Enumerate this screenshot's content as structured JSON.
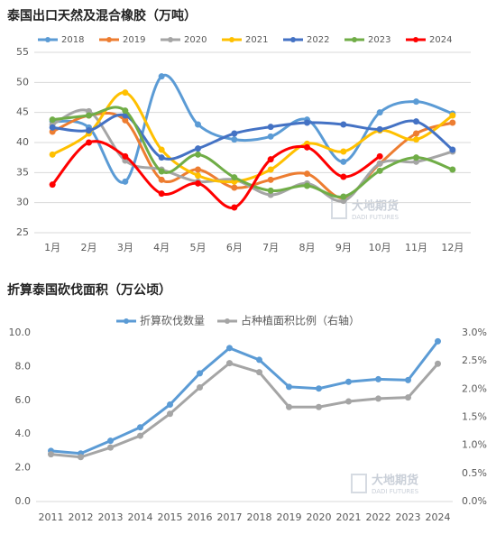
{
  "chart_data": [
    {
      "type": "line",
      "title": "泰国出口天然及混合橡胶（万吨）",
      "categories": [
        "1月",
        "2月",
        "3月",
        "4月",
        "5月",
        "6月",
        "7月",
        "8月",
        "9月",
        "10月",
        "11月",
        "12月"
      ],
      "ylim": [
        25,
        55
      ],
      "yticks": [
        25,
        30,
        35,
        40,
        45,
        50,
        55
      ],
      "grid": true,
      "smooth": true,
      "legend": "top",
      "watermark": [
        "大地期货",
        "DADI FUTURES"
      ],
      "series": [
        {
          "name": "2018",
          "color": "#5b9bd5",
          "values": [
            43.5,
            42.5,
            33.5,
            51,
            43,
            40.5,
            41,
            43.8,
            36.8,
            45,
            46.8,
            44.8
          ]
        },
        {
          "name": "2019",
          "color": "#ed7d31",
          "values": [
            41.8,
            44.5,
            43.7,
            33.8,
            35.5,
            32.5,
            33.8,
            34.8,
            30.8,
            36.5,
            41.5,
            43.3
          ]
        },
        {
          "name": "2020",
          "color": "#a5a5a5",
          "values": [
            43,
            45.2,
            37,
            35.5,
            33.5,
            33.8,
            31.3,
            33.2,
            30.3,
            36.5,
            36.8,
            38.5
          ]
        },
        {
          "name": "2021",
          "color": "#ffc000",
          "values": [
            38,
            41.5,
            48.3,
            38.8,
            34.5,
            33.5,
            35.5,
            39.8,
            38.5,
            42,
            40.5,
            44.5
          ]
        },
        {
          "name": "2022",
          "color": "#4472c4",
          "values": [
            42.5,
            42,
            44.5,
            37.5,
            39,
            41.5,
            42.6,
            43.3,
            43,
            42.2,
            43.5,
            38.8
          ]
        },
        {
          "name": "2023",
          "color": "#70ad47",
          "values": [
            43.8,
            44.5,
            45.3,
            35.2,
            38,
            34.2,
            32,
            32.8,
            31,
            35.3,
            37.5,
            35.5
          ]
        },
        {
          "name": "2024",
          "color": "#ff0000",
          "values": [
            33,
            40,
            37.7,
            31.5,
            33.2,
            29.2,
            37.2,
            39.2,
            34.3,
            37.7,
            null,
            null
          ]
        }
      ]
    },
    {
      "type": "line",
      "title": "折算泰国砍伐面积（万公顷）",
      "categories": [
        "2011",
        "2012",
        "2013",
        "2014",
        "2015",
        "2016",
        "2017",
        "2018",
        "2019",
        "2020",
        "2021",
        "2022",
        "2023",
        "2024"
      ],
      "ylim": [
        0,
        10
      ],
      "yticks": [
        {
          "value": 0,
          "label": "0.0"
        },
        {
          "value": 2,
          "label": "2.0"
        },
        {
          "value": 4,
          "label": "4.0"
        },
        {
          "value": 6,
          "label": "6.0"
        },
        {
          "value": 8,
          "label": "8.0"
        },
        {
          "value": 10,
          "label": "10.0"
        }
      ],
      "y2lim": [
        0,
        3
      ],
      "y2ticks": [
        {
          "value": 0,
          "label": "0.0%"
        },
        {
          "value": 0.5,
          "label": "0.5%"
        },
        {
          "value": 1,
          "label": "1.0%"
        },
        {
          "value": 1.5,
          "label": "1.5%"
        },
        {
          "value": 2,
          "label": "2.0%"
        },
        {
          "value": 2.5,
          "label": "2.5%"
        },
        {
          "value": 3,
          "label": "3.0%"
        }
      ],
      "grid": false,
      "smooth": false,
      "legend": "top",
      "watermark": [
        "大地期货",
        "DADI FUTURES"
      ],
      "series": [
        {
          "name": "折算砍伐数量",
          "color": "#5b9bd5",
          "values": [
            3.0,
            2.85,
            3.6,
            4.4,
            5.75,
            7.6,
            9.1,
            8.4,
            6.8,
            6.7,
            7.1,
            7.25,
            7.2,
            9.5
          ]
        },
        {
          "name": "占种植面积比例（右轴）",
          "color": "#a5a5a5",
          "axis": "y2",
          "values": [
            0.84,
            0.79,
            0.96,
            1.17,
            1.56,
            2.03,
            2.46,
            2.3,
            1.68,
            1.68,
            1.78,
            1.83,
            1.85,
            2.45
          ]
        }
      ]
    }
  ]
}
